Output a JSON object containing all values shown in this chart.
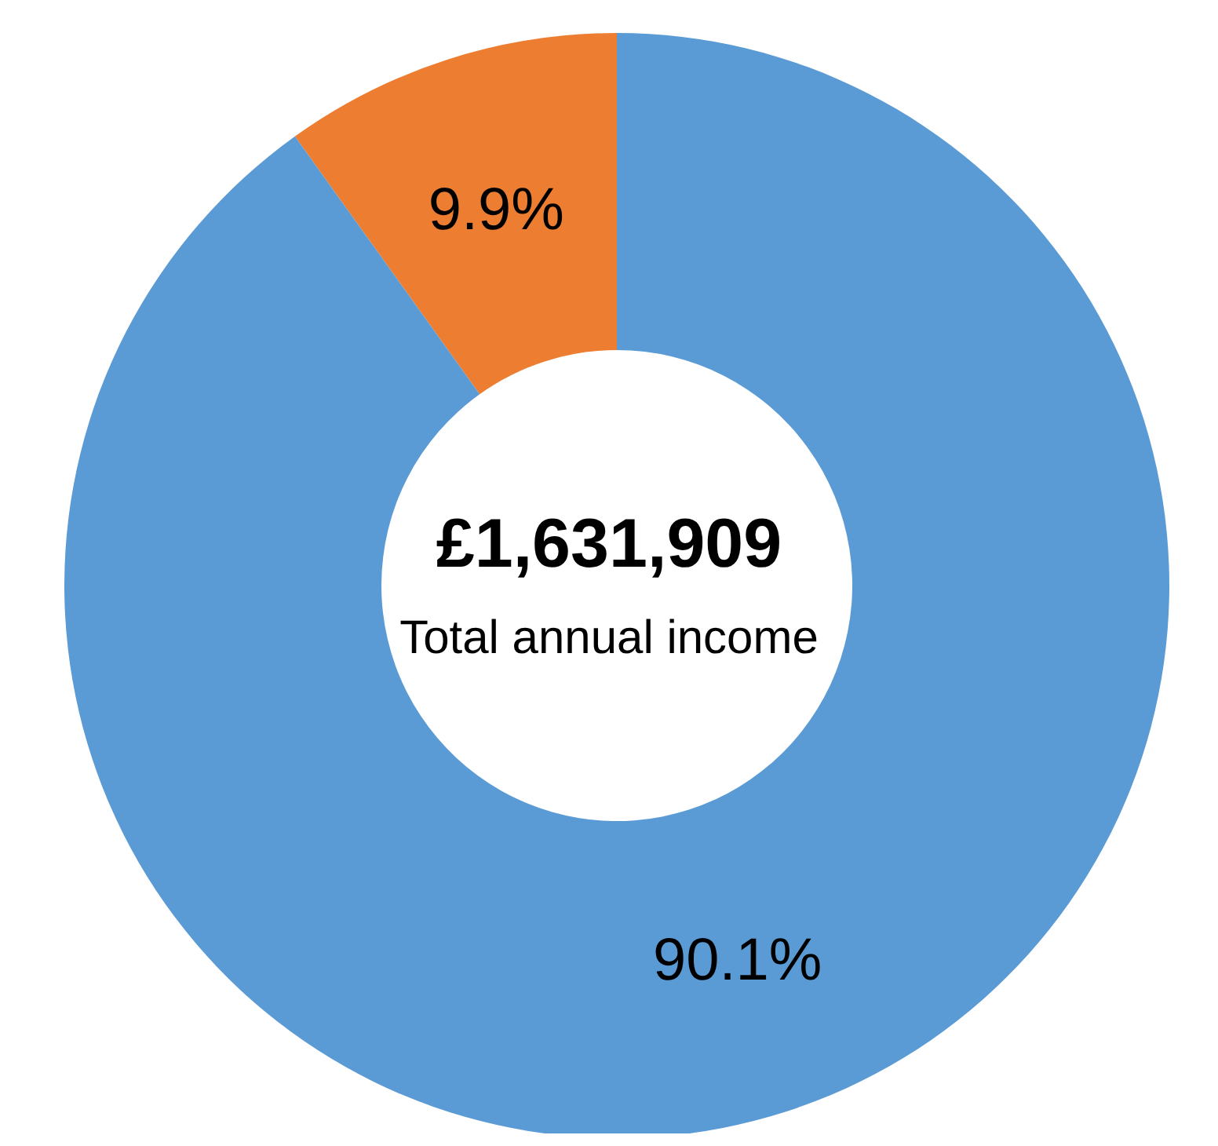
{
  "chart_data": {
    "type": "donut",
    "categories": [
      null,
      null
    ],
    "values": [
      9.9,
      90.1
    ],
    "colors": [
      "#ed7d31",
      "#5b9bd5"
    ],
    "value_labels": [
      "9.9%",
      "90.1%"
    ],
    "annotations": [
      "£1,631,909",
      "Total annual income"
    ],
    "legend": false
  }
}
